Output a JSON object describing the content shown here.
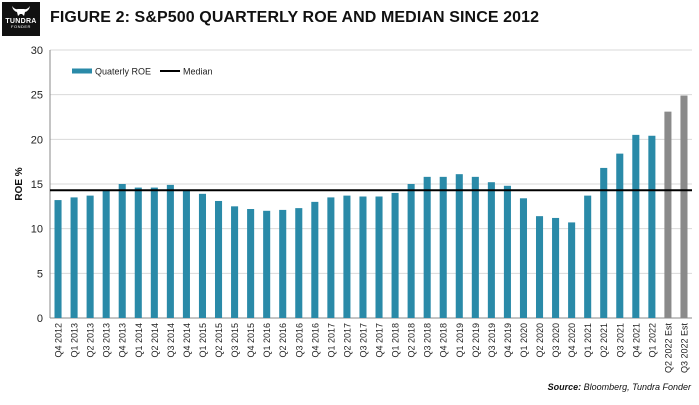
{
  "header": {
    "title": "FIGURE 2: S&P500 QUARTERLY ROE AND MEDIAN SINCE 2012",
    "logo_name": "TUNDRA",
    "logo_sub": "FONDER"
  },
  "footer": {
    "source_label": "Source:",
    "source_text": "Bloomberg, Tundra Fonder"
  },
  "colors": {
    "actual_bar": "#2a8aa8",
    "estimate_bar": "#8a8a8a",
    "median_line": "#000000",
    "grid": "#d9d9d9"
  },
  "chart_data": {
    "type": "bar",
    "ylabel": "ROE %",
    "xlabel": "",
    "ylim": [
      0,
      30
    ],
    "yticks": [
      0,
      5,
      10,
      15,
      20,
      25,
      30
    ],
    "grid": "horizontal",
    "legend_position": "top-left",
    "categories": [
      "Q4 2012",
      "Q1 2013",
      "Q2 2013",
      "Q3 2013",
      "Q4 2013",
      "Q1 2014",
      "Q2 2014",
      "Q3 2014",
      "Q4 2014",
      "Q1 2015",
      "Q2 2015",
      "Q3 2015",
      "Q4 2015",
      "Q1 2016",
      "Q2 2016",
      "Q3 2016",
      "Q4 2016",
      "Q1 2017",
      "Q2 2017",
      "Q3 2017",
      "Q4 2017",
      "Q1 2018",
      "Q2 2018",
      "Q3 2018",
      "Q4 2018",
      "Q1 2019",
      "Q2 2019",
      "Q3 2019",
      "Q4 2019",
      "Q1 2020",
      "Q2 2020",
      "Q3 2020",
      "Q4 2020",
      "Q1 2021",
      "Q2 2021",
      "Q3 2021",
      "Q4 2021",
      "Q1 2022",
      "Q2 2022 Est",
      "Q3 2022 Est"
    ],
    "series": [
      {
        "name": "Quaterly ROE",
        "values": [
          13.2,
          13.5,
          13.7,
          14.3,
          15.0,
          14.6,
          14.6,
          14.9,
          14.3,
          13.9,
          13.1,
          12.5,
          12.2,
          12.0,
          12.1,
          12.3,
          13.0,
          13.5,
          13.7,
          13.6,
          13.6,
          14.0,
          15.0,
          15.8,
          15.8,
          16.1,
          15.8,
          15.2,
          14.8,
          13.4,
          11.4,
          11.2,
          10.7,
          13.7,
          16.8,
          18.4,
          20.5,
          20.4,
          23.1,
          24.9
        ],
        "estimate_from_index": 38
      },
      {
        "name": "Median",
        "type": "line",
        "value": 14.3
      }
    ]
  }
}
